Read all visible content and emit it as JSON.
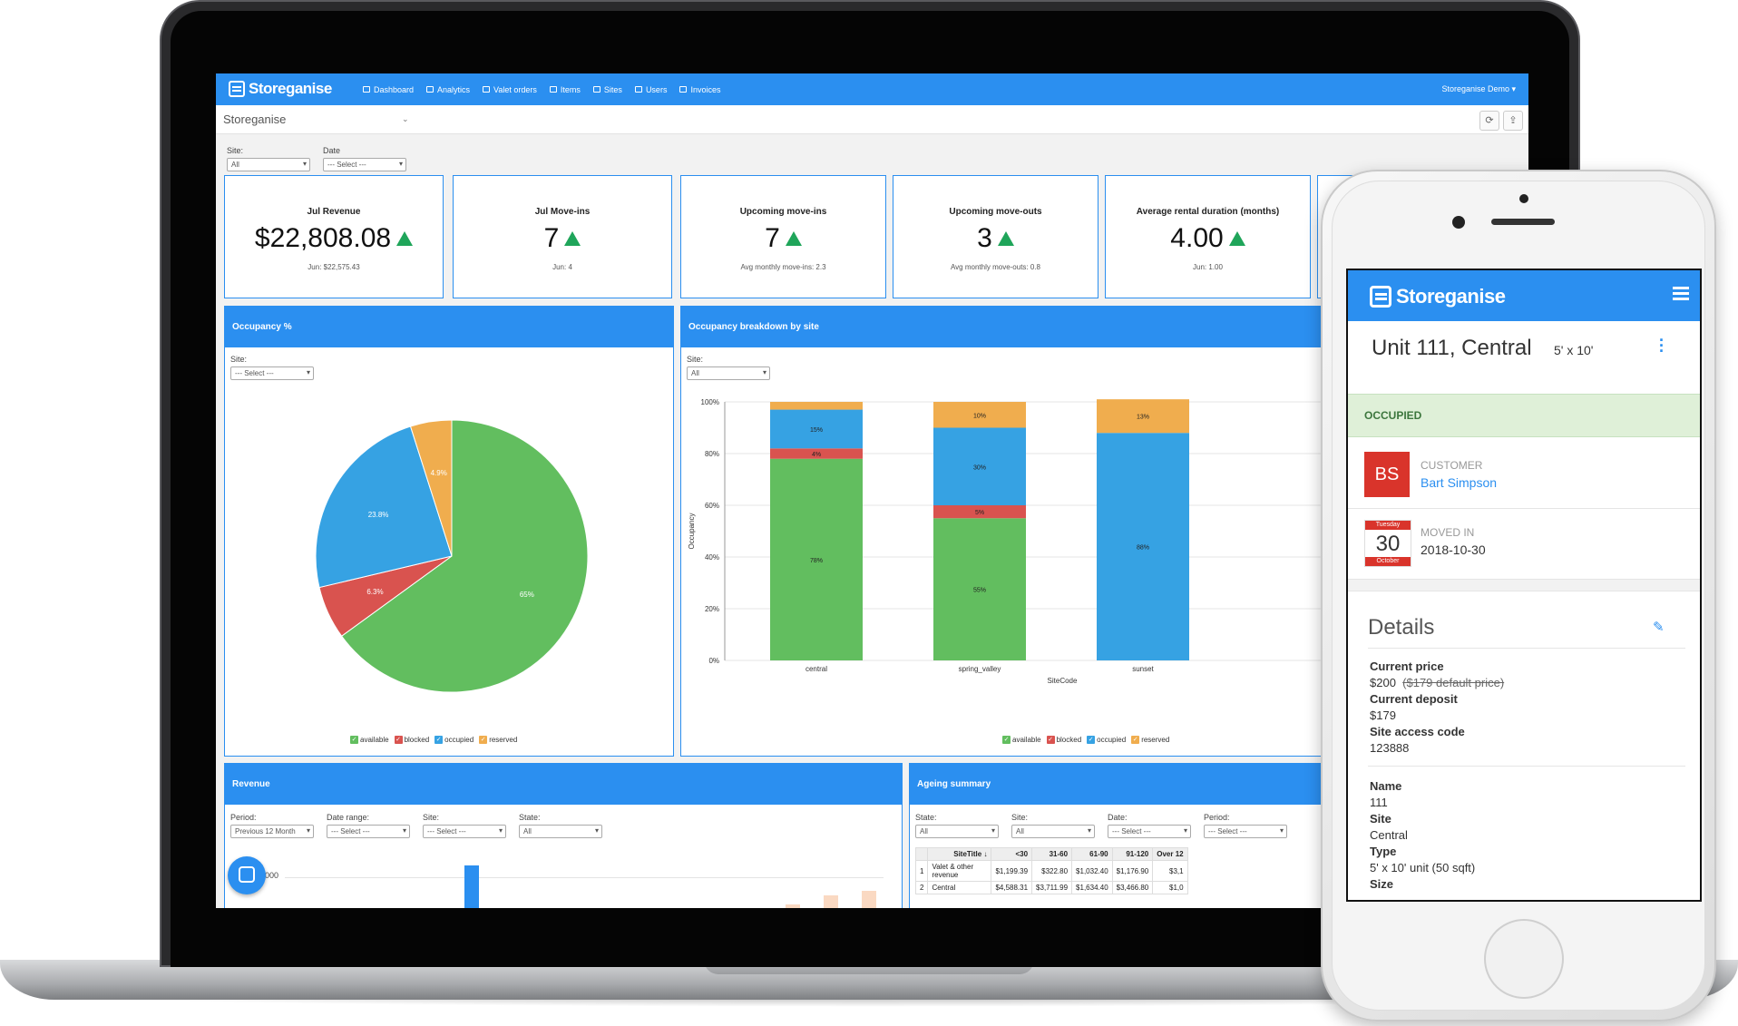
{
  "app": {
    "brand": "Storeganise"
  },
  "nav": {
    "items": [
      "Dashboard",
      "Analytics",
      "Valet orders",
      "Items",
      "Sites",
      "Users",
      "Invoices"
    ],
    "user": "Storeganise Demo ▾"
  },
  "subheader": {
    "org": "Storeganise",
    "refresh_icon": "refresh-icon",
    "export_icon": "export-icon"
  },
  "filters": {
    "site_label": "Site:",
    "site_value": "All",
    "date_label": "Date",
    "date_value": "--- Select ---"
  },
  "kpis": [
    {
      "title": "Jul Revenue",
      "value": "$22,808.08",
      "sub": "Jun: $22,575.43"
    },
    {
      "title": "Jul Move-ins",
      "value": "7",
      "sub": "Jun: 4"
    },
    {
      "title": "Upcoming move-ins",
      "value": "7",
      "sub": "Avg monthly move-ins: 2.3"
    },
    {
      "title": "Upcoming move-outs",
      "value": "3",
      "sub": "Avg monthly move-outs: 0.8"
    },
    {
      "title": "Average rental duration (months)",
      "value": "4.00",
      "sub": "Jun: 1.00"
    }
  ],
  "occupancy": {
    "title": "Occupancy %",
    "site_label": "Site:",
    "site_value": "--- Select ---"
  },
  "breakdown": {
    "title": "Occupancy breakdown by site",
    "site_label": "Site:",
    "site_value": "All"
  },
  "legend": [
    "available",
    "blocked",
    "occupied",
    "reserved"
  ],
  "colors": {
    "available": "#62be5f",
    "blocked": "#d9534f",
    "occupied": "#36a2e3",
    "reserved": "#f0ad4e",
    "primary": "#2b8ff0"
  },
  "chart_data": [
    {
      "type": "pie",
      "title": "Occupancy %",
      "labels": [
        "available",
        "blocked",
        "occupied",
        "reserved"
      ],
      "values": [
        65,
        6.3,
        23.8,
        4.9
      ],
      "value_labels": [
        "65%",
        "6.3%",
        "23.8%",
        "4.9%"
      ]
    },
    {
      "type": "bar",
      "stacked": true,
      "title": "Occupancy breakdown by site",
      "xlabel": "SiteCode",
      "ylabel": "Occupancy",
      "categories": [
        "central",
        "spring_valley",
        "sunset"
      ],
      "ylim": [
        0,
        100
      ],
      "yticks": [
        "0%",
        "20%",
        "40%",
        "60%",
        "80%",
        "100%"
      ],
      "series": [
        {
          "name": "available",
          "values": [
            78,
            55,
            0
          ],
          "labels": [
            "78%",
            "55%",
            ""
          ]
        },
        {
          "name": "blocked",
          "values": [
            4,
            5,
            0
          ],
          "labels": [
            "4%",
            "5%",
            ""
          ]
        },
        {
          "name": "occupied",
          "values": [
            15,
            30,
            88
          ],
          "labels": [
            "15%",
            "30%",
            "88%"
          ]
        },
        {
          "name": "reserved",
          "values": [
            3,
            10,
            13
          ],
          "labels": [
            "",
            "10%",
            "13%"
          ]
        }
      ]
    }
  ],
  "revenue": {
    "title": "Revenue",
    "period_label": "Period:",
    "period_value": "Previous 12 Month",
    "range_label": "Date range:",
    "range_value": "--- Select ---",
    "site_label": "Site:",
    "site_value": "--- Select ---",
    "state_label": "State:",
    "state_value": "All",
    "axis_label": "000"
  },
  "ageing": {
    "title": "Ageing summary",
    "state_label": "State:",
    "state_value": "All",
    "site_label": "Site:",
    "site_value": "All",
    "date_label": "Date:",
    "date_value": "--- Select ---",
    "period_label": "Period:",
    "period_value": "--- Select ---",
    "columns": [
      "",
      "SiteTitle ↓",
      "<30",
      "31-60",
      "61-90",
      "91-120",
      "Over 12"
    ],
    "rows": [
      [
        "1",
        "Valet & other revenue",
        "$1,199.39",
        "$322.80",
        "$1,032.40",
        "$1,176.90",
        "$3,1"
      ],
      [
        "2",
        "Central",
        "$4,588.31",
        "$3,711.99",
        "$1,634.40",
        "$3,466.80",
        "$1,0"
      ]
    ]
  },
  "mobile": {
    "brand": "Storeganise",
    "unit_title": "Unit 111, Central",
    "unit_size": "5' x 10'",
    "status": "OCCUPIED",
    "customer_initials": "BS",
    "customer_label": "CUSTOMER",
    "customer_name": "Bart Simpson",
    "cal_weekday": "Tuesday",
    "cal_day": "30",
    "cal_month": "October",
    "moved_label": "MOVED IN",
    "moved_date": "2018-10-30",
    "details_title": "Details",
    "current_price_label": "Current price",
    "current_price": "$200",
    "default_price": "($179 default price)",
    "deposit_label": "Current deposit",
    "deposit": "$179",
    "access_label": "Site access code",
    "access_code": "123888",
    "name_label": "Name",
    "name": "111",
    "site_label": "Site",
    "site": "Central",
    "type_label": "Type",
    "type": "5' x 10' unit (50 sqft)",
    "size_label": "Size"
  }
}
